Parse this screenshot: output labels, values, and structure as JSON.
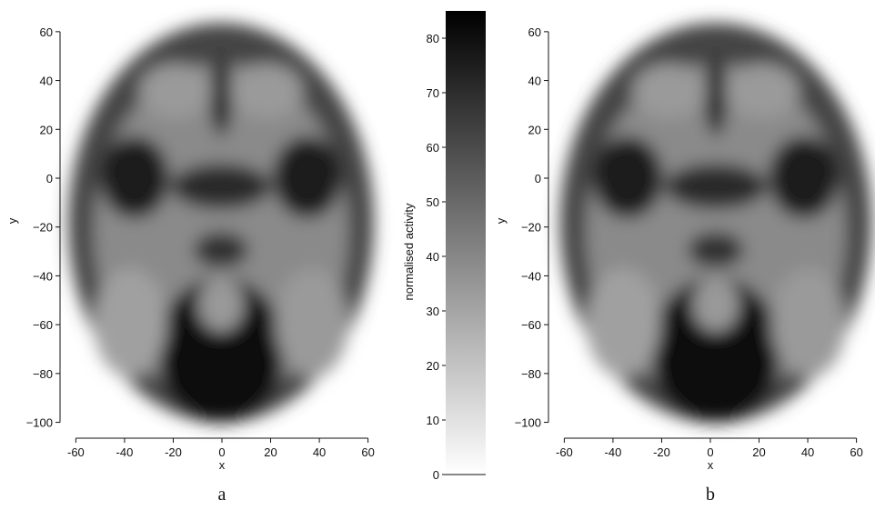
{
  "chart_data": [
    {
      "type": "image",
      "xlabel": "x",
      "ylabel": "y",
      "caption": "a",
      "xlim": [
        -65,
        65
      ],
      "ylim": [
        -105,
        70
      ],
      "xticks": [
        -60,
        -40,
        -20,
        0,
        20,
        40,
        60
      ],
      "yticks": [
        {
          "value": -100,
          "label": "−100"
        },
        {
          "value": -80,
          "label": "−80"
        },
        {
          "value": -60,
          "label": "−60"
        },
        {
          "value": -40,
          "label": "−40"
        },
        {
          "value": -20,
          "label": "−20"
        },
        0,
        20,
        40,
        60
      ]
    },
    {
      "type": "colorbar",
      "label": "normalised activity",
      "ylim": [
        0,
        85
      ],
      "yticks": [
        0,
        10,
        20,
        30,
        40,
        50,
        60,
        70,
        80
      ],
      "colors": [
        "#ffffff",
        "#000000"
      ]
    },
    {
      "type": "image",
      "xlabel": "x",
      "ylabel": "y",
      "caption": "b",
      "xlim": [
        -65,
        65
      ],
      "ylim": [
        -105,
        70
      ],
      "xticks": [
        -60,
        -40,
        -20,
        0,
        20,
        40,
        60
      ],
      "yticks": [
        {
          "value": -100,
          "label": "−100"
        },
        {
          "value": -80,
          "label": "−80"
        },
        {
          "value": -60,
          "label": "−60"
        },
        {
          "value": -40,
          "label": "−40"
        },
        {
          "value": -20,
          "label": "−20"
        },
        0,
        20,
        40,
        60
      ]
    }
  ]
}
